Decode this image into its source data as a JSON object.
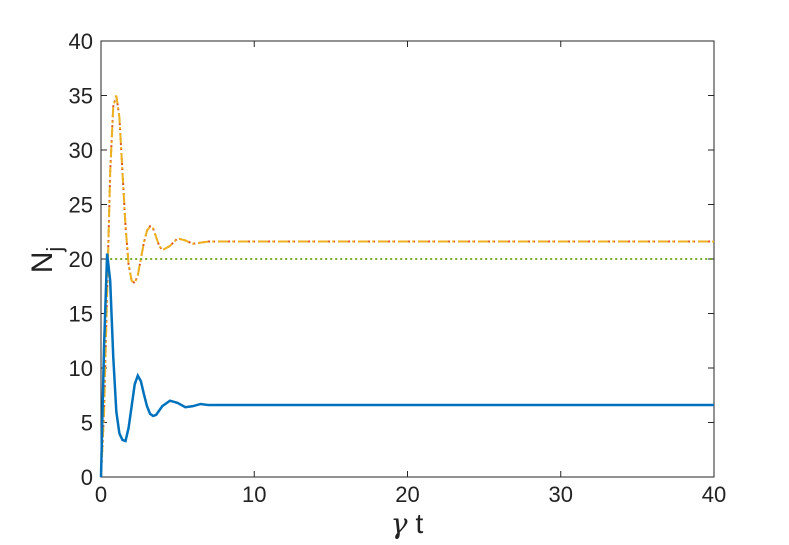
{
  "chart_data": {
    "type": "line",
    "xlabel": {
      "symbol": "γ",
      "text": "t"
    },
    "ylabel": {
      "text": "N",
      "subscript": "j"
    },
    "x": [
      0,
      0.2,
      0.4,
      0.6,
      0.8,
      1,
      1.2,
      1.4,
      1.6,
      1.8,
      2,
      2.2,
      2.4,
      2.6,
      2.8,
      3,
      3.2,
      3.4,
      3.6,
      3.8,
      4,
      4.5,
      5,
      5.5,
      6,
      6.5,
      7,
      8,
      10,
      15,
      20,
      25,
      30,
      35,
      40
    ],
    "series": [
      {
        "color": "#d95319",
        "style": "dotted",
        "values": [
          0,
          6,
          17,
          28,
          34,
          35,
          33,
          28,
          23,
          19.5,
          18,
          17.8,
          18.5,
          20,
          21.5,
          22.6,
          23,
          22.8,
          22,
          21.2,
          20.8,
          21.2,
          21.9,
          21.7,
          21.4,
          21.5,
          21.6,
          21.6,
          21.6,
          21.6,
          21.6,
          21.6,
          21.6,
          21.6,
          21.6
        ]
      },
      {
        "color": "#edb120",
        "style": "dashdot",
        "values": [
          0,
          6,
          17,
          28,
          34,
          35,
          33,
          28,
          23,
          19.5,
          18,
          17.8,
          18.5,
          20,
          21.5,
          22.6,
          23,
          22.8,
          22,
          21.2,
          20.8,
          21.2,
          21.9,
          21.7,
          21.4,
          21.5,
          21.6,
          21.6,
          21.6,
          21.6,
          21.6,
          21.6,
          21.6,
          21.6,
          21.6
        ]
      },
      {
        "color": "#77ac30",
        "style": "dotted",
        "values": [
          null,
          null,
          null,
          20,
          20,
          20,
          20,
          20,
          20,
          20,
          20,
          20,
          20,
          20,
          20,
          20,
          20,
          20,
          20,
          20,
          20,
          20,
          20,
          20,
          20,
          20,
          20,
          20,
          20,
          20,
          20,
          20,
          20,
          20,
          20
        ]
      },
      {
        "color": "#0072bd",
        "style": "solid",
        "values": [
          0,
          12,
          20.5,
          18,
          11,
          6,
          4,
          3.4,
          3.3,
          4.5,
          6.5,
          8.5,
          9.3,
          8.8,
          7.6,
          6.5,
          5.8,
          5.6,
          5.7,
          6.1,
          6.5,
          7,
          6.8,
          6.4,
          6.5,
          6.7,
          6.6,
          6.6,
          6.6,
          6.6,
          6.6,
          6.6,
          6.6,
          6.6,
          6.6
        ]
      }
    ],
    "xlim": [
      0,
      40
    ],
    "xticks": [
      0,
      10,
      20,
      30,
      40
    ],
    "ylim": [
      0,
      40
    ],
    "yticks": [
      0,
      5,
      10,
      15,
      20,
      25,
      30,
      35,
      40
    ]
  }
}
